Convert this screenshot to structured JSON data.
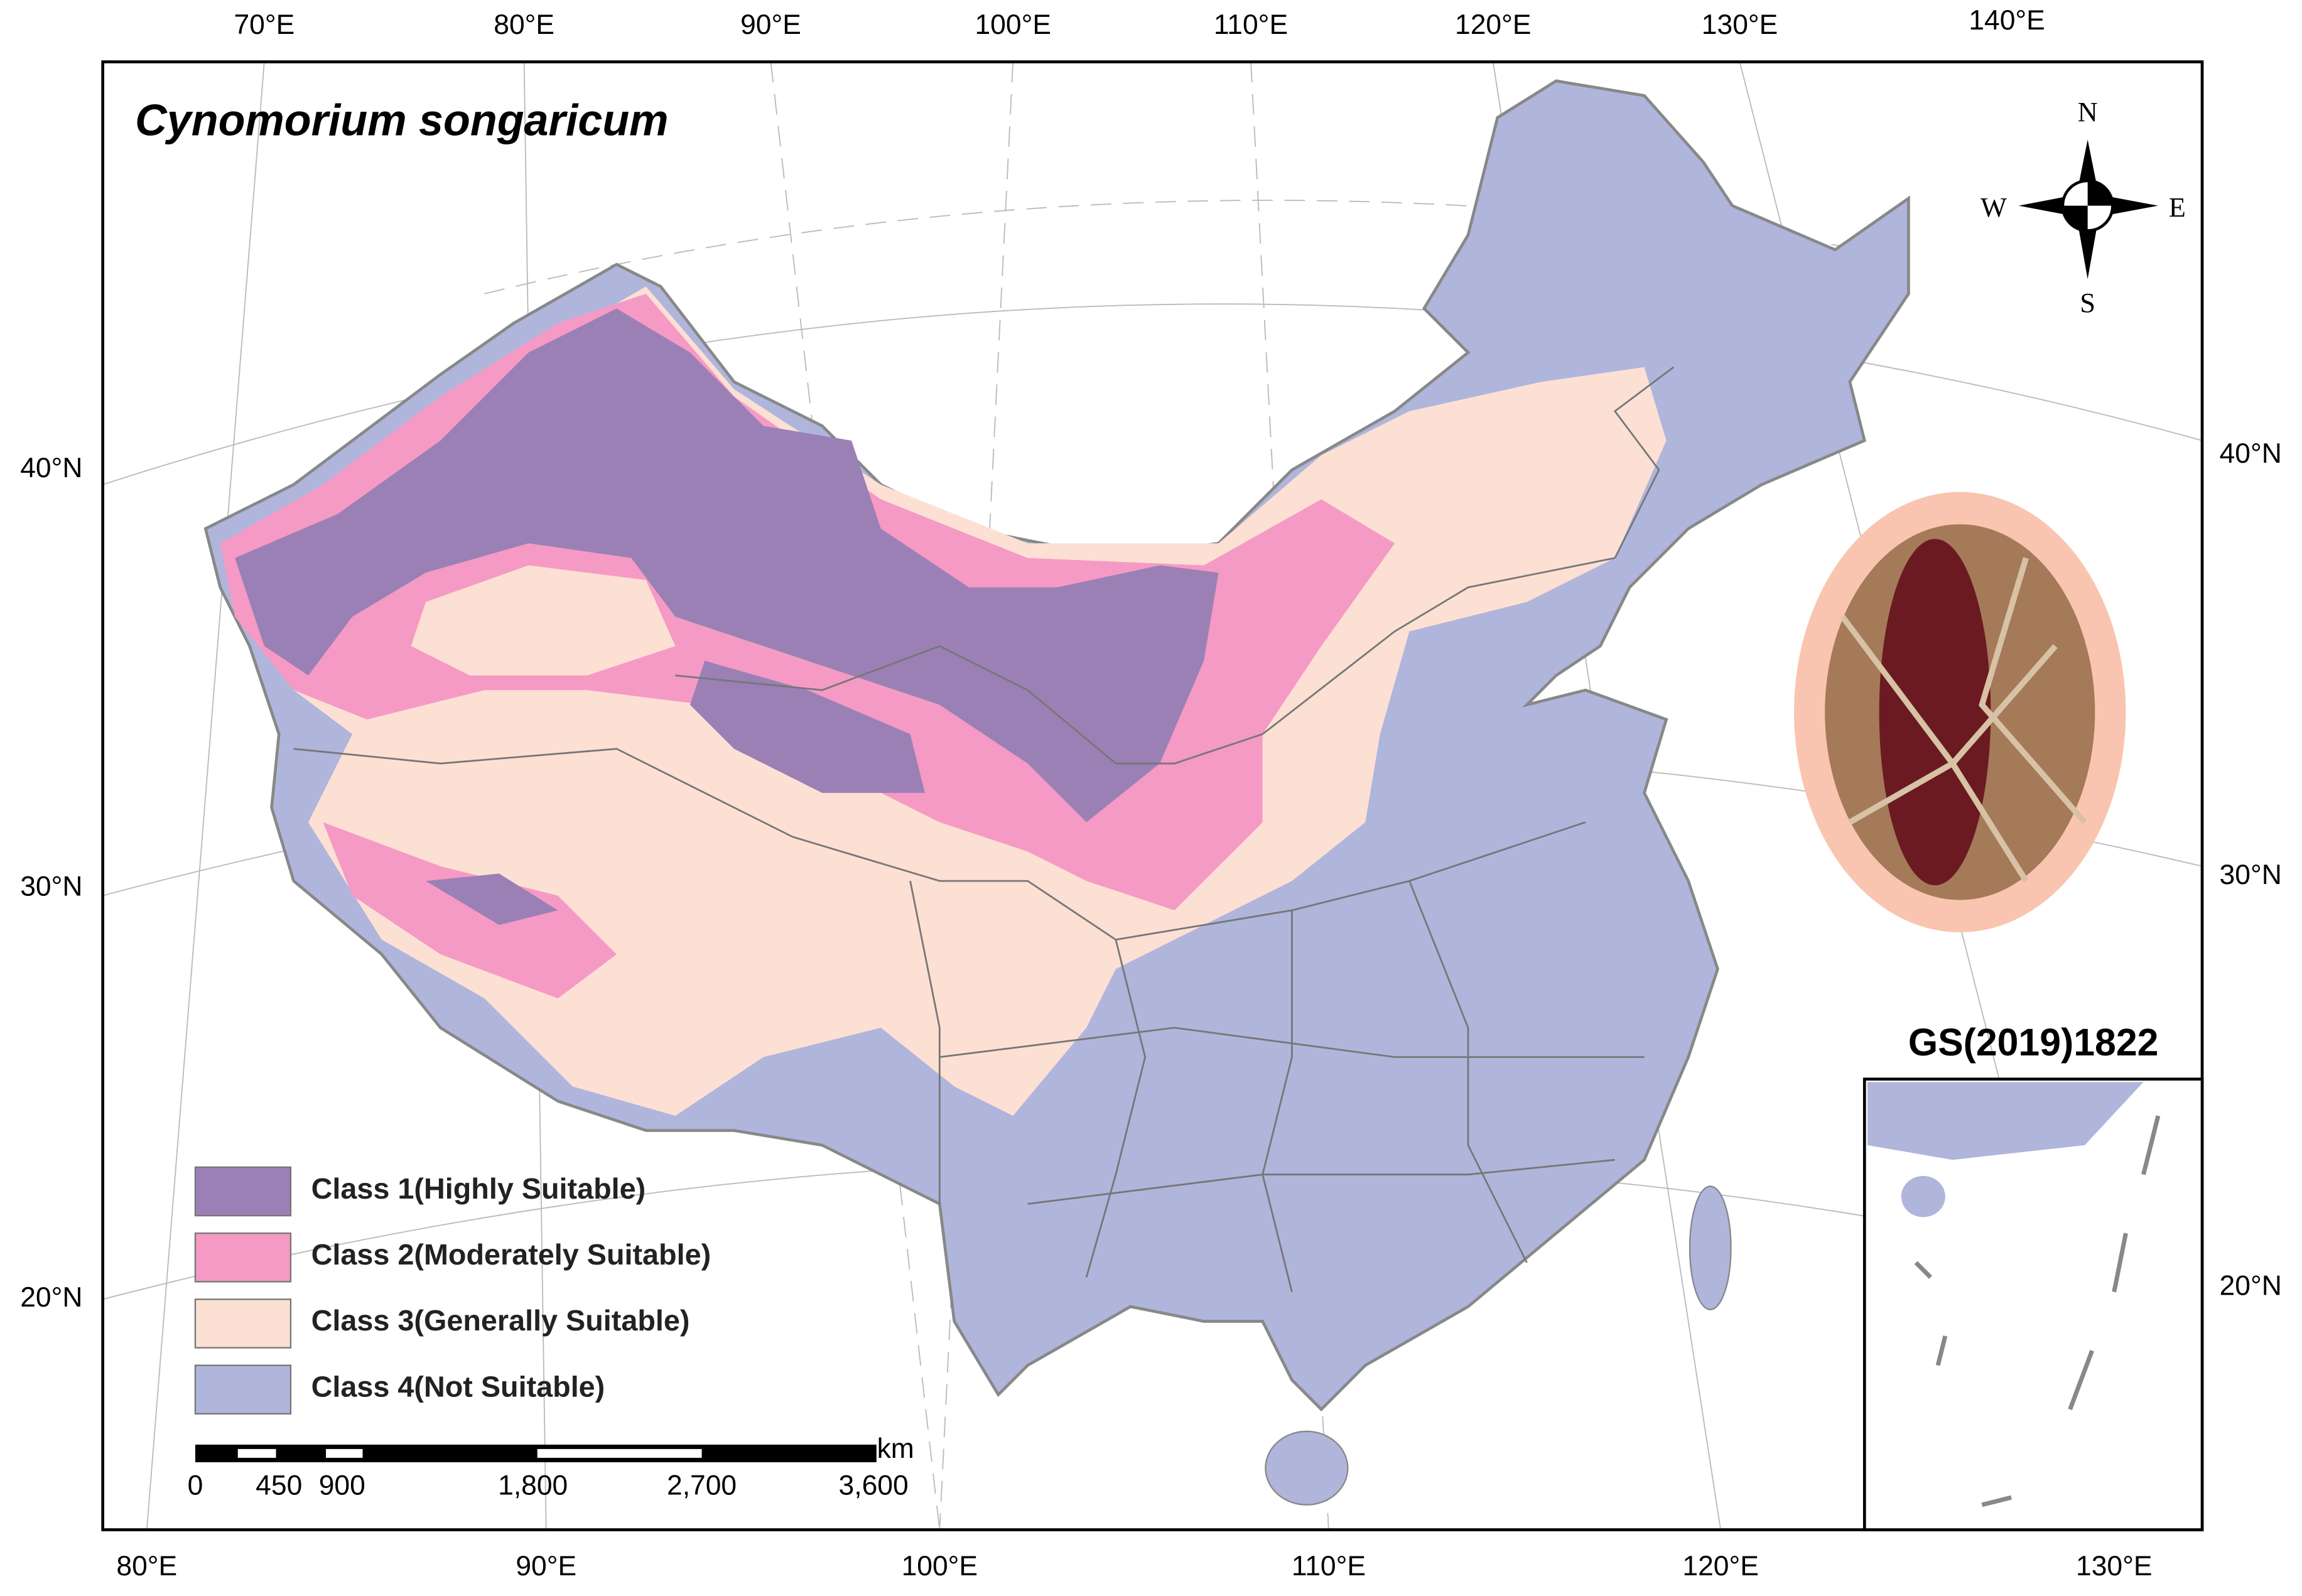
{
  "title": "Cynomorium songaricum",
  "top_labels": [
    "70°E",
    "80°E",
    "90°E",
    "100°E",
    "110°E",
    "120°E",
    "130°E",
    "140°E"
  ],
  "bottom_labels": [
    "80°E",
    "90°E",
    "100°E",
    "110°E",
    "120°E",
    "130°E"
  ],
  "left_labels": [
    "40°N",
    "30°N",
    "20°N"
  ],
  "right_labels": [
    "40°N",
    "30°N",
    "20°N"
  ],
  "legend": [
    {
      "label": "Class 1(Highly Suitable)",
      "color": "#9b80b6"
    },
    {
      "label": "Class 2(Moderately Suitable)",
      "color": "#f59ac4"
    },
    {
      "label": "Class 3(Generally Suitable)",
      "color": "#fde0d4"
    },
    {
      "label": "Class 4(Not Suitable)",
      "color": "#b0b5dc"
    }
  ],
  "scale_bar": {
    "unit": "km",
    "ticks": [
      "0",
      "450",
      "900",
      "1,800",
      "2,700",
      "3,600"
    ]
  },
  "compass": {
    "north": "N",
    "south": "S",
    "east": "E",
    "west": "W"
  },
  "inset_label": "GS(2019)1822"
}
